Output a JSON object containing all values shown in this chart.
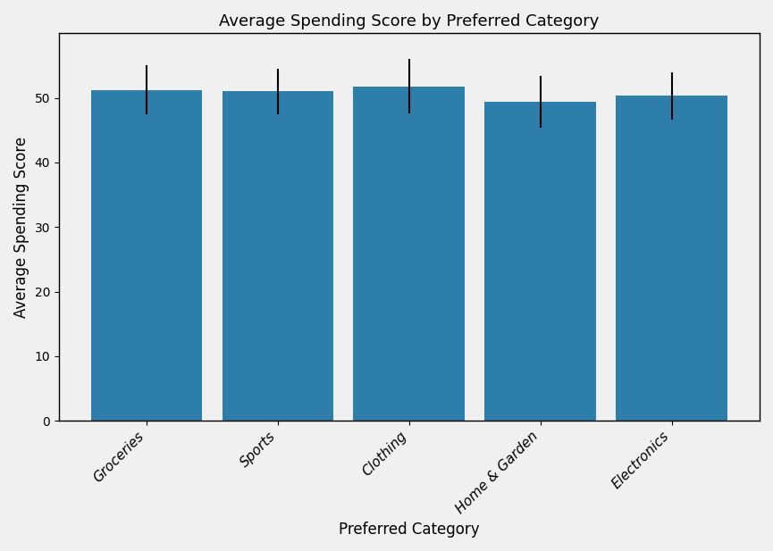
{
  "categories": [
    "Groceries",
    "Sports",
    "Clothing",
    "Home & Garden",
    "Electronics"
  ],
  "means": [
    51.2,
    51.0,
    51.8,
    49.4,
    50.3
  ],
  "errors": [
    3.8,
    3.5,
    4.2,
    4.0,
    3.7
  ],
  "bar_color": "#2e7eab",
  "title": "Average Spending Score by Preferred Category",
  "xlabel": "Preferred Category",
  "ylabel": "Average Spending Score",
  "ylim": [
    0,
    60
  ],
  "yticks": [
    0,
    10,
    20,
    30,
    40,
    50
  ],
  "figsize": [
    8.65,
    6.17
  ],
  "dpi": 100,
  "bar_width": 0.85,
  "elinewidth": 1.5,
  "tick_fontsize": 11,
  "label_fontsize": 12,
  "title_fontsize": 13
}
